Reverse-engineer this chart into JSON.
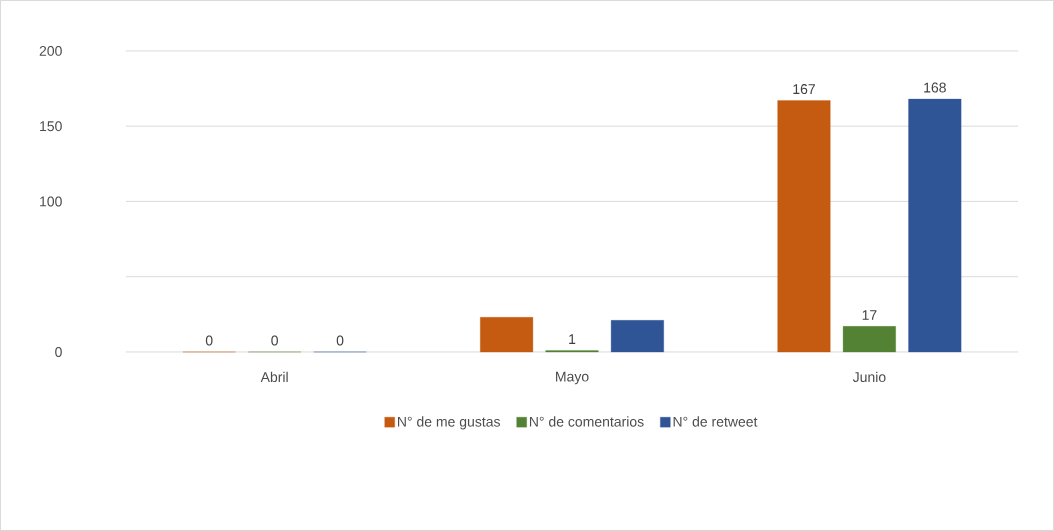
{
  "chart_data": {
    "type": "bar",
    "categories": [
      "Abril",
      "Mayo",
      "Junio"
    ],
    "series": [
      {
        "name": "N° de me gustas",
        "color": "#c55a11",
        "values": [
          0,
          23,
          167
        ],
        "value_labels": [
          "0",
          null,
          "167"
        ]
      },
      {
        "name": "N° de comentarios",
        "color": "#548235",
        "values": [
          0,
          1,
          17
        ],
        "value_labels": [
          "0",
          "1",
          "17"
        ]
      },
      {
        "name": "N° de retweet",
        "color": "#2f5597",
        "values": [
          0,
          21,
          168
        ],
        "value_labels": [
          "0",
          null,
          "168"
        ]
      }
    ],
    "ylim": [
      0,
      200
    ],
    "yticks": [
      0,
      {
        "value": 50,
        "label": null
      },
      100,
      150,
      200
    ],
    "grid": "y",
    "legend": "bottom"
  }
}
